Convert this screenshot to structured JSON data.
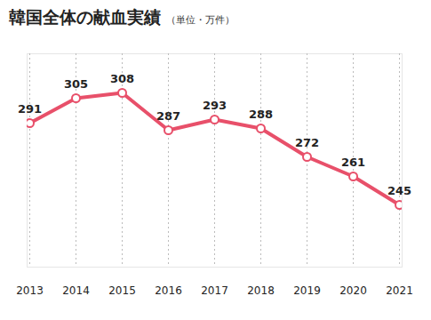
{
  "chart_data": {
    "type": "line",
    "title": "韓国全体の献血実績",
    "subtitle": "（単位・万件）",
    "categories": [
      "2013",
      "2014",
      "2015",
      "2016",
      "2017",
      "2018",
      "2019",
      "2020",
      "2021"
    ],
    "values": [
      291,
      305,
      308,
      287,
      293,
      288,
      272,
      261,
      245
    ],
    "color": "#e8506a",
    "marker": "circle",
    "ylim": [
      210,
      330
    ],
    "data_labels": true,
    "tick_labels": "x",
    "grid": "x"
  }
}
